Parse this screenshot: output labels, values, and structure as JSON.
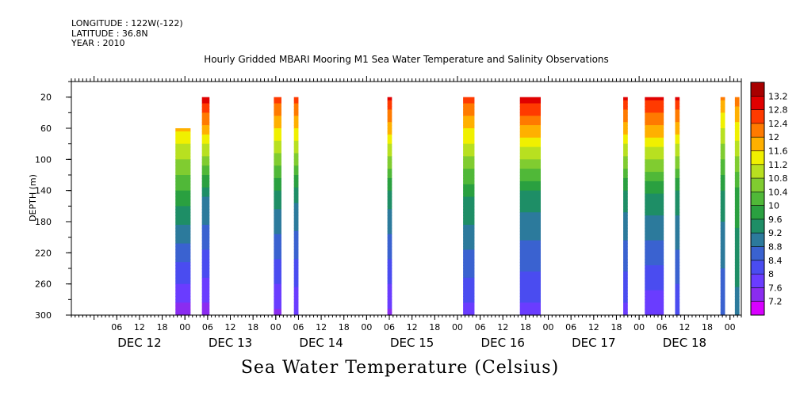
{
  "header": {
    "longitude": "LONGITUDE : 122W(-122)",
    "latitude": "LATITUDE : 36.8N",
    "year": "YEAR : 2010"
  },
  "chart_data": {
    "type": "heatmap",
    "title": "Hourly Gridded MBARI Mooring M1 Sea Water Temperature and Salinity Observations",
    "bottom_title": "Sea Water Temperature (Celsius)",
    "xlabel": "",
    "ylabel": "DEPTH (m)",
    "x_unit": "hours since DEC 12 00:00 2010",
    "xlim": [
      -6,
      171
    ],
    "ylim": [
      300,
      0
    ],
    "y_ticks": [
      20,
      60,
      100,
      140,
      180,
      220,
      260,
      300
    ],
    "x_hour_ticks": [
      {
        "h": 6,
        "label": "06"
      },
      {
        "h": 12,
        "label": "12"
      },
      {
        "h": 18,
        "label": "18"
      },
      {
        "h": 24,
        "label": "00"
      },
      {
        "h": 30,
        "label": "06"
      },
      {
        "h": 36,
        "label": "12"
      },
      {
        "h": 42,
        "label": "18"
      },
      {
        "h": 48,
        "label": "00"
      },
      {
        "h": 54,
        "label": "06"
      },
      {
        "h": 60,
        "label": "12"
      },
      {
        "h": 66,
        "label": "18"
      },
      {
        "h": 72,
        "label": "00"
      },
      {
        "h": 78,
        "label": "06"
      },
      {
        "h": 84,
        "label": "12"
      },
      {
        "h": 90,
        "label": "18"
      },
      {
        "h": 96,
        "label": "00"
      },
      {
        "h": 102,
        "label": "06"
      },
      {
        "h": 108,
        "label": "12"
      },
      {
        "h": 114,
        "label": "18"
      },
      {
        "h": 120,
        "label": "00"
      },
      {
        "h": 126,
        "label": "06"
      },
      {
        "h": 132,
        "label": "12"
      },
      {
        "h": 138,
        "label": "18"
      },
      {
        "h": 144,
        "label": "00"
      },
      {
        "h": 150,
        "label": "06"
      },
      {
        "h": 156,
        "label": "12"
      },
      {
        "h": 162,
        "label": "18"
      },
      {
        "h": 168,
        "label": "00"
      }
    ],
    "x_day_labels": [
      {
        "h": 12,
        "label": "DEC 12"
      },
      {
        "h": 36,
        "label": "DEC 13"
      },
      {
        "h": 60,
        "label": "DEC 14"
      },
      {
        "h": 84,
        "label": "DEC 15"
      },
      {
        "h": 108,
        "label": "DEC 16"
      },
      {
        "h": 132,
        "label": "DEC 17"
      },
      {
        "h": 156,
        "label": "DEC 18"
      }
    ],
    "colorbar": {
      "levels": [
        7.2,
        7.6,
        8,
        8.4,
        8.8,
        9.2,
        9.6,
        10,
        10.4,
        10.8,
        11.2,
        11.6,
        12,
        12.4,
        12.8,
        13.2
      ],
      "colors": [
        "#d800ff",
        "#8a2cf0",
        "#6a3cff",
        "#4a4cf0",
        "#3a62d0",
        "#2c7a9c",
        "#1e8e66",
        "#2aa040",
        "#50b838",
        "#80cc30",
        "#b8e020",
        "#f0f000",
        "#ffb000",
        "#ff7a00",
        "#ff3a00",
        "#e00000",
        "#a80000"
      ]
    },
    "columns": [
      {
        "x0": 21.5,
        "x1": 25.5,
        "top_depth": 60,
        "surface": 11.6,
        "mid": 9.4,
        "bottom": 7.3
      },
      {
        "x0": 28.5,
        "x1": 30.5,
        "top_depth": 20,
        "surface": 13.0,
        "mid": 9.2,
        "bottom": 7.4
      },
      {
        "x0": 47.5,
        "x1": 49.5,
        "top_depth": 20,
        "surface": 12.6,
        "mid": 9.4,
        "bottom": 7.5
      },
      {
        "x0": 52.8,
        "x1": 54.0,
        "top_depth": 20,
        "surface": 12.6,
        "mid": 9.3,
        "bottom": 7.6
      },
      {
        "x0": 77.5,
        "x1": 78.7,
        "top_depth": 20,
        "surface": 12.8,
        "mid": 9.4,
        "bottom": 7.5
      },
      {
        "x0": 97.5,
        "x1": 100.5,
        "top_depth": 20,
        "surface": 12.5,
        "mid": 9.6,
        "bottom": 7.8
      },
      {
        "x0": 112.5,
        "x1": 118.0,
        "top_depth": 20,
        "surface": 13.0,
        "mid": 9.4,
        "bottom": 7.8
      },
      {
        "x0": 139.8,
        "x1": 141.0,
        "top_depth": 20,
        "surface": 12.8,
        "mid": 9.4,
        "bottom": 7.8
      },
      {
        "x0": 145.5,
        "x1": 150.5,
        "top_depth": 20,
        "surface": 12.9,
        "mid": 9.5,
        "bottom": 7.6
      },
      {
        "x0": 153.5,
        "x1": 154.7,
        "top_depth": 20,
        "surface": 12.8,
        "mid": 9.4,
        "bottom": 8.0
      },
      {
        "x0": 165.5,
        "x1": 166.7,
        "top_depth": 20,
        "surface": 12.0,
        "mid": 9.4,
        "bottom": 8.4
      },
      {
        "x0": 169.3,
        "x1": 170.5,
        "top_depth": 20,
        "surface": 12.2,
        "mid": 9.8,
        "bottom": 9.0
      }
    ]
  }
}
